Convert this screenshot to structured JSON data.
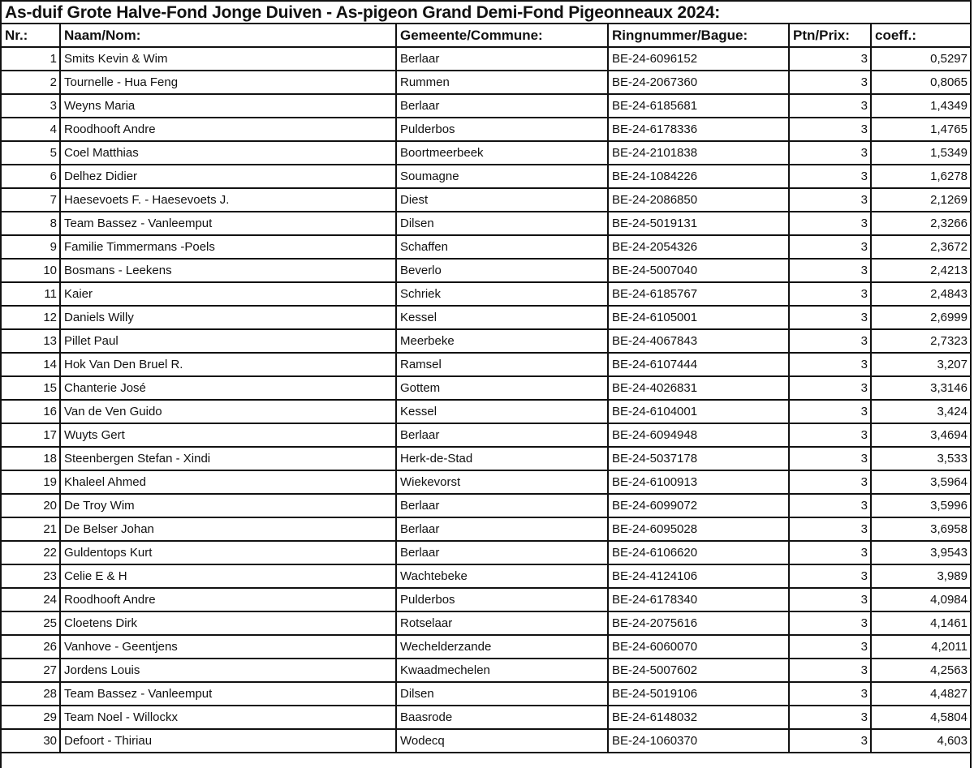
{
  "title": "As-duif Grote Halve-Fond Jonge Duiven - As-pigeon Grand Demi-Fond Pigeonneaux 2024:",
  "headers": [
    "Nr.:",
    "Naam/Nom:",
    "Gemeente/Commune:",
    "Ringnummer/Bague:",
    "Ptn/Prix:",
    "coeff.:"
  ],
  "rows": [
    [
      "1",
      "Smits Kevin & Wim",
      "Berlaar",
      "BE-24-6096152",
      "3",
      "0,5297"
    ],
    [
      "2",
      "Tournelle - Hua Feng",
      "Rummen",
      "BE-24-2067360",
      "3",
      "0,8065"
    ],
    [
      "3",
      "Weyns Maria",
      "Berlaar",
      "BE-24-6185681",
      "3",
      "1,4349"
    ],
    [
      "4",
      "Roodhooft Andre",
      "Pulderbos",
      "BE-24-6178336",
      "3",
      "1,4765"
    ],
    [
      "5",
      "Coel Matthias",
      "Boortmeerbeek",
      "BE-24-2101838",
      "3",
      "1,5349"
    ],
    [
      "6",
      "Delhez Didier",
      "Soumagne",
      "BE-24-1084226",
      "3",
      "1,6278"
    ],
    [
      "7",
      "Haesevoets F. - Haesevoets J.",
      "Diest",
      "BE-24-2086850",
      "3",
      "2,1269"
    ],
    [
      "8",
      "Team Bassez - Vanleemput",
      "Dilsen",
      "BE-24-5019131",
      "3",
      "2,3266"
    ],
    [
      "9",
      "Familie Timmermans -Poels",
      "Schaffen",
      "BE-24-2054326",
      "3",
      "2,3672"
    ],
    [
      "10",
      "Bosmans - Leekens",
      "Beverlo",
      "BE-24-5007040",
      "3",
      "2,4213"
    ],
    [
      "11",
      "Kaier",
      "Schriek",
      "BE-24-6185767",
      "3",
      "2,4843"
    ],
    [
      "12",
      "Daniels Willy",
      "Kessel",
      "BE-24-6105001",
      "3",
      "2,6999"
    ],
    [
      "13",
      "Pillet Paul",
      "Meerbeke",
      "BE-24-4067843",
      "3",
      "2,7323"
    ],
    [
      "14",
      "Hok Van Den Bruel R.",
      "Ramsel",
      "BE-24-6107444",
      "3",
      "3,207"
    ],
    [
      "15",
      "Chanterie José",
      "Gottem",
      "BE-24-4026831",
      "3",
      "3,3146"
    ],
    [
      "16",
      "Van de Ven Guido",
      "Kessel",
      "BE-24-6104001",
      "3",
      "3,424"
    ],
    [
      "17",
      "Wuyts Gert",
      "Berlaar",
      "BE-24-6094948",
      "3",
      "3,4694"
    ],
    [
      "18",
      "Steenbergen Stefan - Xindi",
      "Herk-de-Stad",
      "BE-24-5037178",
      "3",
      "3,533"
    ],
    [
      "19",
      "Khaleel Ahmed",
      "Wiekevorst",
      "BE-24-6100913",
      "3",
      "3,5964"
    ],
    [
      "20",
      "De Troy Wim",
      "Berlaar",
      "BE-24-6099072",
      "3",
      "3,5996"
    ],
    [
      "21",
      "De Belser Johan",
      "Berlaar",
      "BE-24-6095028",
      "3",
      "3,6958"
    ],
    [
      "22",
      "Guldentops Kurt",
      "Berlaar",
      "BE-24-6106620",
      "3",
      "3,9543"
    ],
    [
      "23",
      "Celie E & H",
      "Wachtebeke",
      "BE-24-4124106",
      "3",
      "3,989"
    ],
    [
      "24",
      "Roodhooft Andre",
      "Pulderbos",
      "BE-24-6178340",
      "3",
      "4,0984"
    ],
    [
      "25",
      "Cloetens Dirk",
      "Rotselaar",
      "BE-24-2075616",
      "3",
      "4,1461"
    ],
    [
      "26",
      "Vanhove - Geentjens",
      "Wechelderzande",
      "BE-24-6060070",
      "3",
      "4,2011"
    ],
    [
      "27",
      "Jordens Louis",
      "Kwaadmechelen",
      "BE-24-5007602",
      "3",
      "4,2563"
    ],
    [
      "28",
      "Team Bassez - Vanleemput",
      "Dilsen",
      "BE-24-5019106",
      "3",
      "4,4827"
    ],
    [
      "29",
      "Team Noel - Willockx",
      "Baasrode",
      "BE-24-6148032",
      "3",
      "4,5804"
    ],
    [
      "30",
      "Defoort - Thiriau",
      "Wodecq",
      "BE-24-1060370",
      "3",
      "4,603"
    ]
  ]
}
